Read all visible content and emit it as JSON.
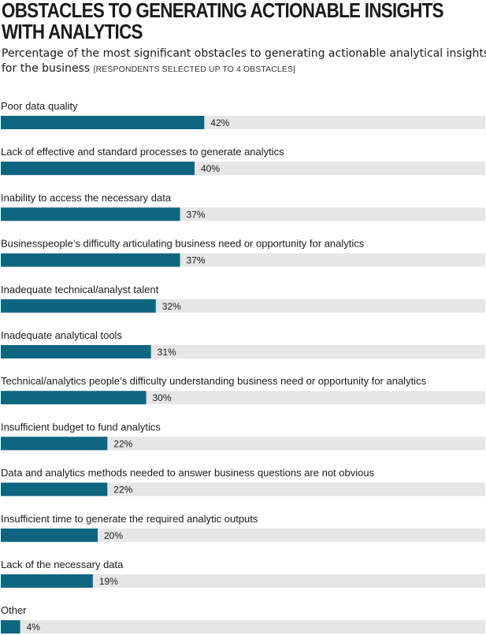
{
  "chart_data": {
    "type": "bar",
    "orientation": "horizontal",
    "title": [
      "OBSTACLES TO GENERATING ACTIONABLE INSIGHTS",
      "WITH ANALYTICS"
    ],
    "subtitle": [
      "Percentage of the most significant obstacles to generating actionable analytical insights",
      "for the business"
    ],
    "note": "[RESPONDENTS SELECTED UP TO 4 OBSTACLES]",
    "categories": [
      "Poor data quality",
      "Lack of effective and standard processes to generate analytics",
      "Inability to access the necessary data",
      "Businesspeople’s difficulty articulating business need or opportunity for analytics",
      "Inadequate technical/analyst talent",
      "Inadequate analytical tools",
      "Technical/analytics people’s difficulty understanding business need or opportunity for analytics",
      "Insufficient budget to fund analytics",
      "Data and analytics methods needed to answer business questions are not obvious",
      "Insufficient time to generate the required analytic outputs",
      "Lack of the necessary data",
      "Other"
    ],
    "values": [
      42,
      40,
      37,
      37,
      32,
      31,
      30,
      22,
      22,
      20,
      19,
      4
    ],
    "value_labels": [
      "42%",
      "40%",
      "37%",
      "37%",
      "32%",
      "31%",
      "30%",
      "22%",
      "22%",
      "20%",
      "19%",
      "4%"
    ],
    "xlim": [
      0,
      100
    ],
    "grid": false,
    "colors": {
      "bar": "#0e6580",
      "track": "#e6e6e6",
      "text": "#1a1a1a"
    }
  }
}
